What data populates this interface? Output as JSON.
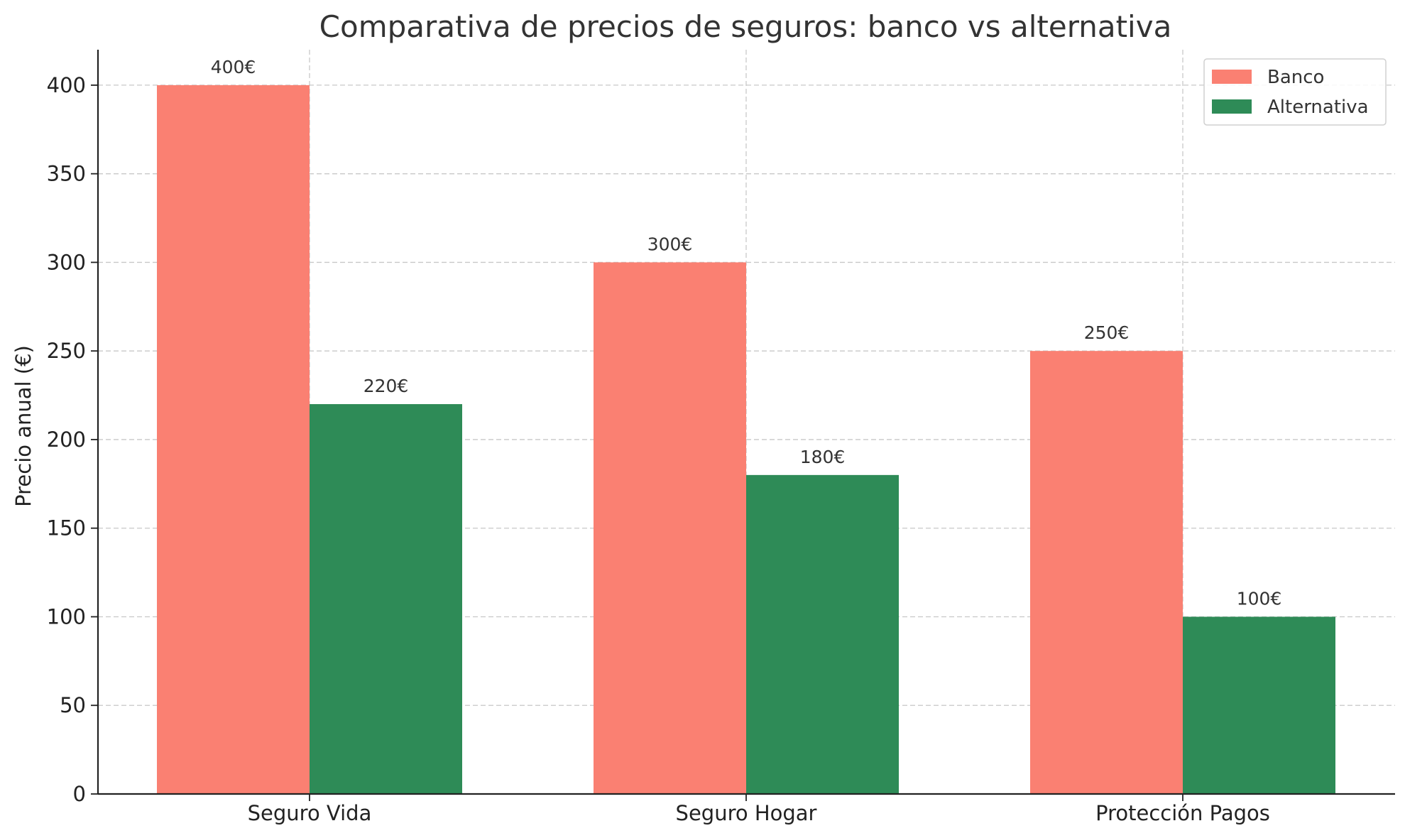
{
  "chart_data": {
    "type": "bar",
    "title": "Comparativa de precios de seguros: banco vs alternativa",
    "xlabel": "",
    "ylabel": "Precio anual (€)",
    "categories": [
      "Seguro Vida",
      "Seguro Hogar",
      "Protección Pagos"
    ],
    "series": [
      {
        "name": "Banco",
        "values": [
          400,
          300,
          250
        ],
        "labels": [
          "400€",
          "300€",
          "250€"
        ],
        "color": "#fa8072"
      },
      {
        "name": "Alternativa",
        "values": [
          220,
          180,
          100
        ],
        "labels": [
          "220€",
          "180€",
          "100€"
        ],
        "color": "#2e8b57"
      }
    ],
    "ylim": [
      0,
      420
    ],
    "yticks": [
      0,
      50,
      100,
      150,
      200,
      250,
      300,
      350,
      400
    ],
    "ytick_labels": [
      "0",
      "50",
      "100",
      "150",
      "200",
      "250",
      "300",
      "350",
      "400"
    ],
    "grid": true,
    "legend_position": "top-right"
  }
}
